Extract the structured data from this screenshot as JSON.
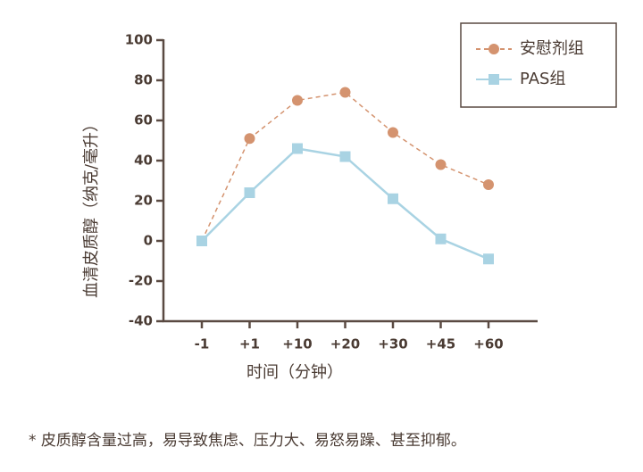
{
  "chart_data": {
    "type": "line",
    "categories": [
      "-1",
      "+1",
      "+10",
      "+20",
      "+30",
      "+45",
      "+60"
    ],
    "series": [
      {
        "name": "安慰剂组",
        "color": "#d4936f",
        "line_style": "dashed",
        "marker": "circle",
        "values": [
          0,
          51,
          70,
          74,
          54,
          38,
          28
        ]
      },
      {
        "name": "PAS组",
        "color": "#a9d3e3",
        "line_style": "solid",
        "marker": "square",
        "values": [
          0,
          24,
          46,
          42,
          21,
          1,
          -9
        ]
      }
    ],
    "x_label": "时间（分钟）",
    "y_label": "血清皮质醇（纳克/毫升）",
    "ylim": [
      -40,
      100
    ],
    "yticks": [
      -40,
      -20,
      0,
      20,
      40,
      60,
      80,
      100
    ],
    "legend": "upper-right",
    "note": "* 皮质醇含量过高，易导致焦虑、压力大、易怒易躁、甚至抑郁。"
  }
}
